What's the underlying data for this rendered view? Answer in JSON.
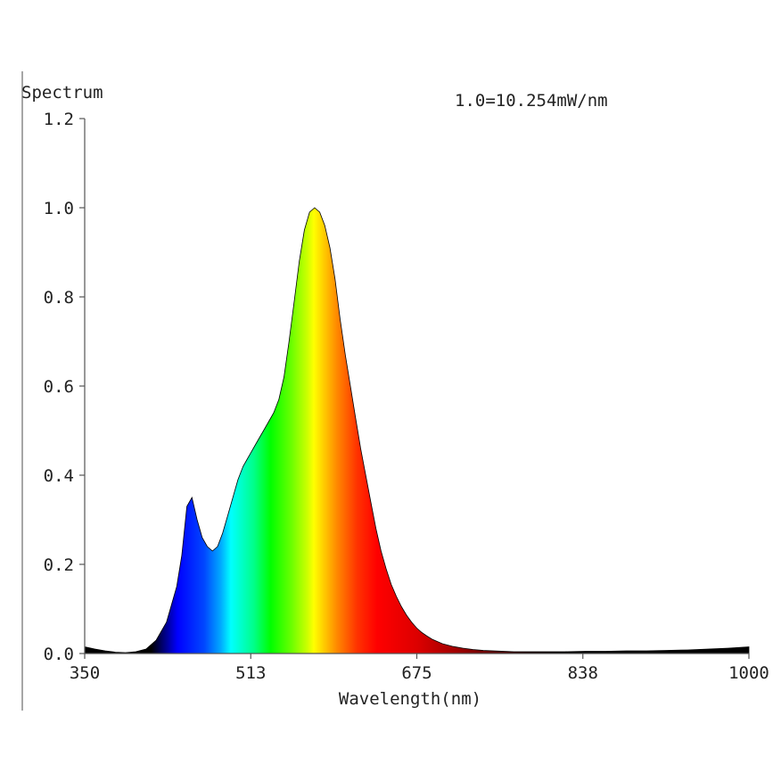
{
  "chart_data": {
    "type": "area",
    "title": "Spectrum",
    "annotation": "1.0=10.254mW/nm",
    "xlabel": "Wavelength(nm)",
    "ylabel": "",
    "xlim": [
      350,
      1000
    ],
    "ylim": [
      0,
      1.2
    ],
    "x_tick_labels": [
      "350",
      "513",
      "675",
      "838",
      "1000"
    ],
    "y_tick_labels": [
      "0.0",
      "0.2",
      "0.4",
      "0.6",
      "0.8",
      "1.0",
      "1.2"
    ],
    "grid": false,
    "legend": "none",
    "fill": "visible-spectrum-gradient",
    "series": [
      {
        "x": [
          350,
          360,
          370,
          380,
          390,
          400,
          410,
          420,
          430,
          440,
          445,
          450,
          455,
          460,
          465,
          470,
          475,
          480,
          485,
          490,
          495,
          500,
          505,
          510,
          515,
          520,
          525,
          530,
          535,
          540,
          545,
          550,
          555,
          560,
          565,
          570,
          575,
          580,
          585,
          590,
          595,
          600,
          605,
          610,
          615,
          620,
          625,
          630,
          635,
          640,
          645,
          650,
          655,
          660,
          665,
          670,
          675,
          680,
          685,
          690,
          695,
          700,
          710,
          720,
          730,
          740,
          750,
          760,
          770,
          780,
          790,
          800,
          820,
          840,
          860,
          880,
          900,
          920,
          940,
          960,
          980,
          1000
        ],
        "y": [
          0.015,
          0.01,
          0.006,
          0.003,
          0.002,
          0.004,
          0.01,
          0.03,
          0.07,
          0.15,
          0.22,
          0.33,
          0.35,
          0.3,
          0.26,
          0.24,
          0.23,
          0.24,
          0.27,
          0.31,
          0.35,
          0.39,
          0.42,
          0.44,
          0.46,
          0.48,
          0.5,
          0.52,
          0.54,
          0.57,
          0.62,
          0.7,
          0.79,
          0.88,
          0.95,
          0.99,
          1.0,
          0.99,
          0.96,
          0.91,
          0.84,
          0.75,
          0.67,
          0.6,
          0.53,
          0.46,
          0.4,
          0.34,
          0.28,
          0.23,
          0.19,
          0.155,
          0.128,
          0.105,
          0.086,
          0.07,
          0.057,
          0.047,
          0.039,
          0.032,
          0.027,
          0.022,
          0.016,
          0.012,
          0.009,
          0.007,
          0.006,
          0.005,
          0.004,
          0.004,
          0.004,
          0.004,
          0.004,
          0.005,
          0.005,
          0.006,
          0.006,
          0.007,
          0.008,
          0.01,
          0.012,
          0.015
        ]
      }
    ]
  }
}
